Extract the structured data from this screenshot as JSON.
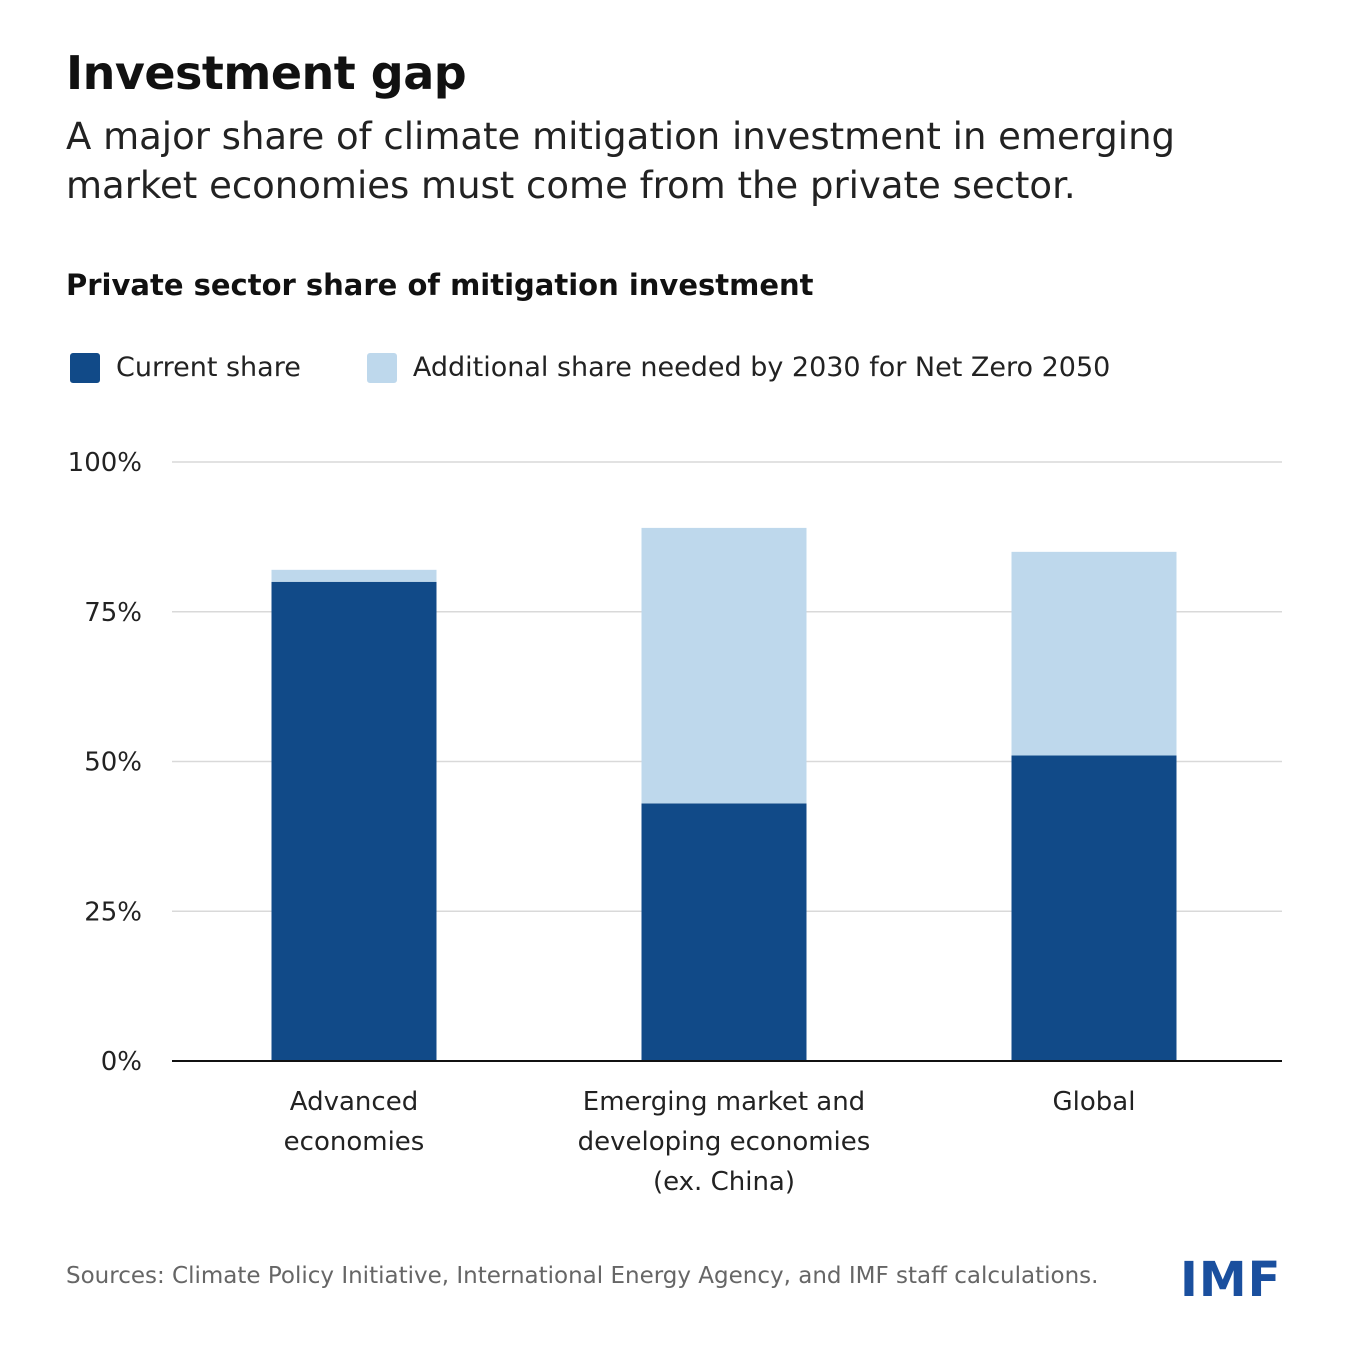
{
  "header": {
    "title": "Investment gap",
    "subtitle": "A major share of climate mitigation investment in emerging market economies must come from the private sector."
  },
  "footer": {
    "source": "Sources: Climate Policy Initiative, International Energy Agency, and IMF staff calculations.",
    "logo": "IMF"
  },
  "colors": {
    "current": "#114a88",
    "additional": "#bed8ec",
    "grid": "#d9d9d9",
    "logo": "#1a4f9e"
  },
  "chart_data": {
    "type": "bar",
    "stacked": true,
    "title": "Private sector share of mitigation investment",
    "categories": [
      [
        "Advanced",
        "economies"
      ],
      [
        "Emerging market and",
        "developing economies",
        "(ex. China)"
      ],
      [
        "Global"
      ]
    ],
    "series": [
      {
        "name": "Current share",
        "values": [
          80,
          43,
          51
        ]
      },
      {
        "name": "Additional share needed by 2030 for Net Zero 2050",
        "values": [
          2,
          46,
          34
        ]
      }
    ],
    "yticks": [
      "0%",
      "25%",
      "50%",
      "75%",
      "100%"
    ],
    "ytick_values": [
      0,
      25,
      50,
      75,
      100
    ],
    "ylim": [
      0,
      100
    ],
    "grid": true,
    "legend": "top-left"
  }
}
